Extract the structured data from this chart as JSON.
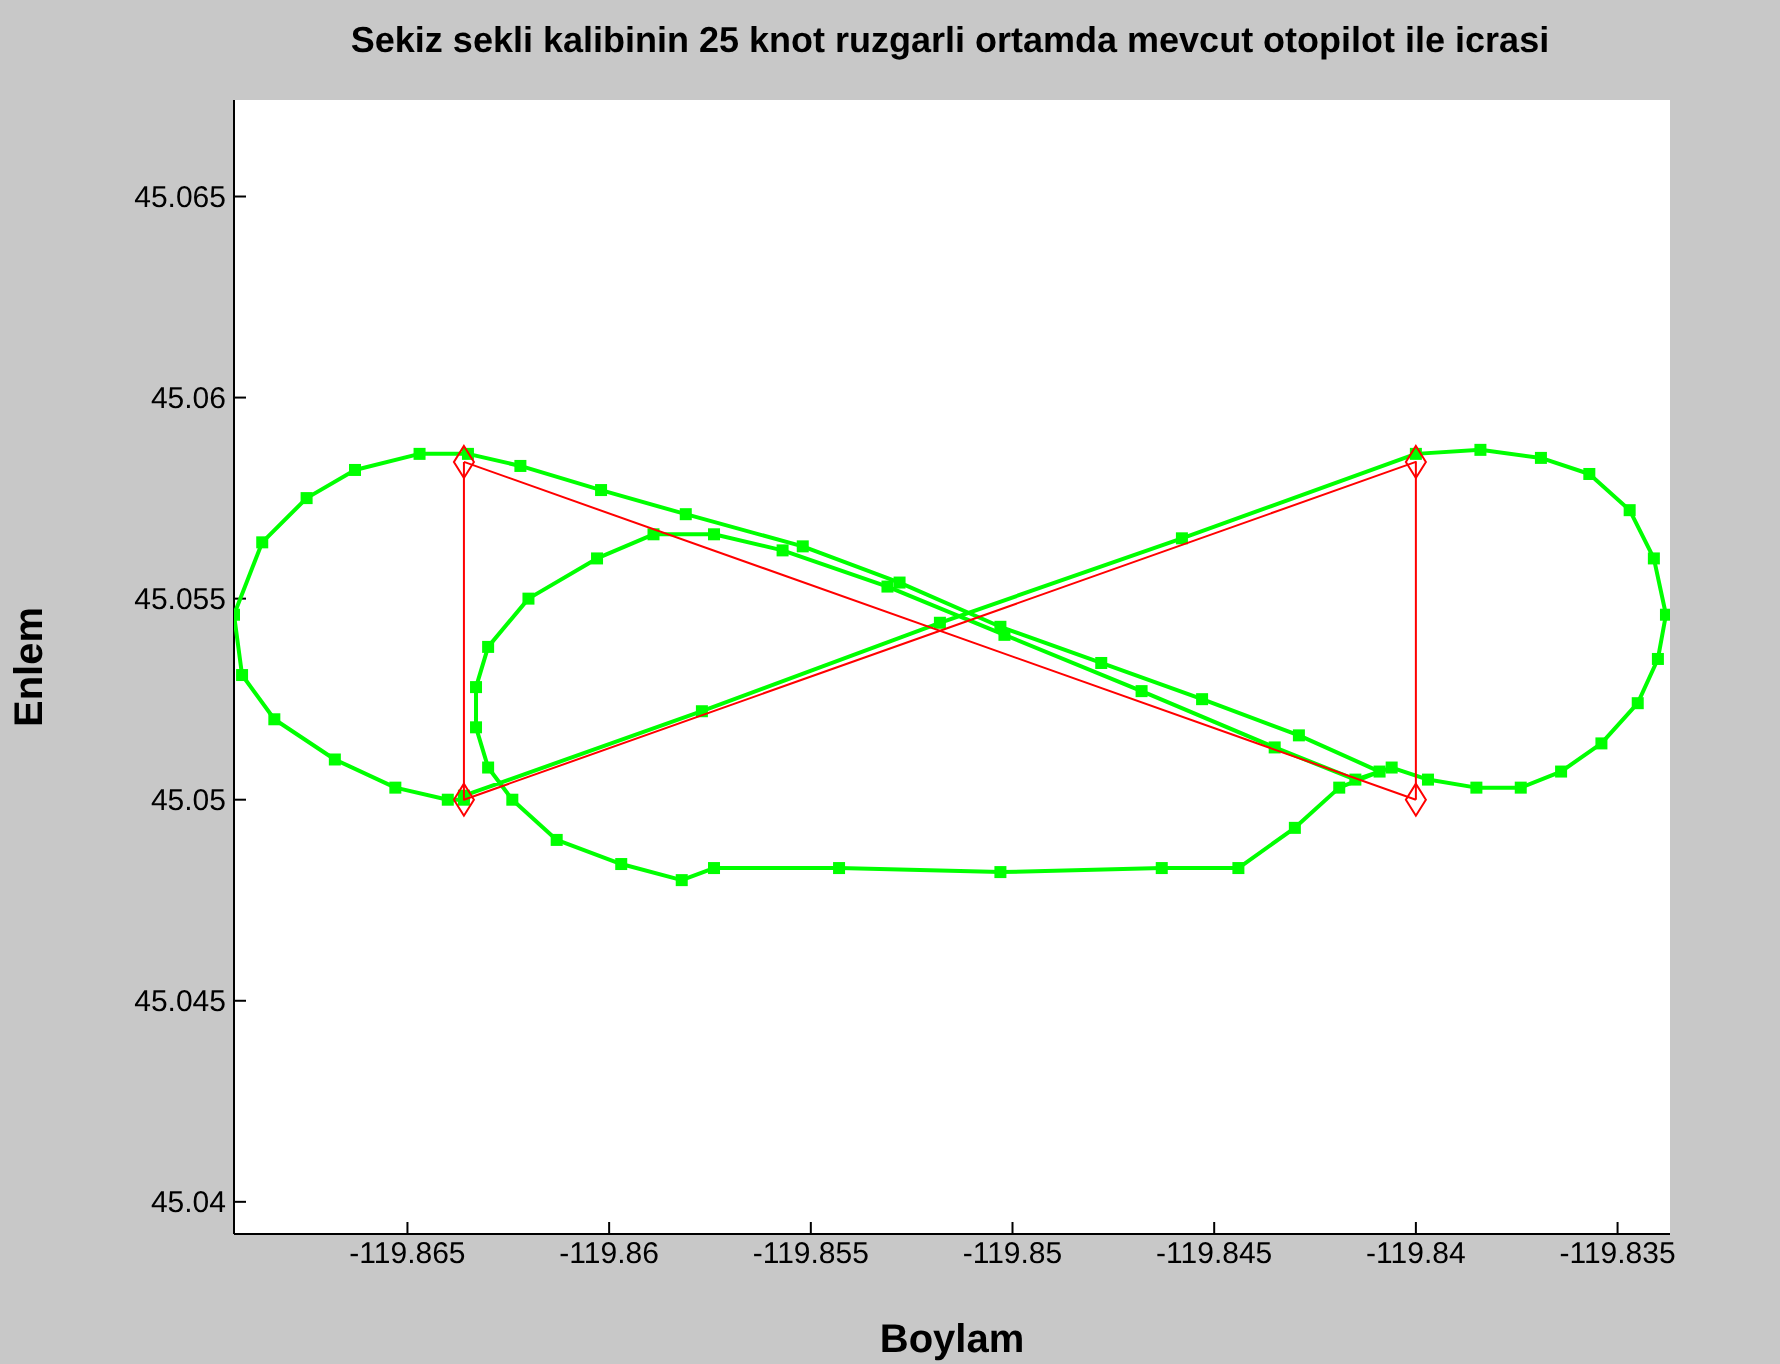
{
  "chart_data": {
    "type": "line",
    "title": "Sekiz sekli kalibinin 25 knot ruzgarli ortamda mevcut otopilot ile icrasi",
    "xlabel": "Boylam",
    "ylabel": "Enlem",
    "xlim": [
      -119.8693,
      -119.8337
    ],
    "xticks": [
      -119.865,
      -119.86,
      -119.855,
      -119.85,
      -119.845,
      -119.84,
      -119.835
    ],
    "ylim": [
      45.0392,
      45.0674
    ],
    "yticks": [
      45.04,
      45.045,
      45.05,
      45.055,
      45.06,
      45.065
    ],
    "grid": false,
    "line_style": "solid",
    "series": [
      {
        "color": "#00ff00",
        "marker": "square",
        "x": [
          -119.8636,
          -119.8577,
          -119.8518,
          -119.8458,
          -119.84,
          -119.8384,
          -119.8369,
          -119.8357,
          -119.8347,
          -119.8341,
          -119.8338,
          -119.834,
          -119.8345,
          -119.8354,
          -119.8364,
          -119.8374,
          -119.8385,
          -119.8397,
          -119.8406,
          -119.8415,
          -119.8435,
          -119.8468,
          -119.8502,
          -119.8531,
          -119.8557,
          -119.8574,
          -119.8589,
          -119.8603,
          -119.862,
          -119.863,
          -119.8633,
          -119.8633,
          -119.863,
          -119.8624,
          -119.8613,
          -119.8597,
          -119.8582,
          -119.8574,
          -119.8543,
          -119.8503,
          -119.8463,
          -119.8444,
          -119.843,
          -119.8419,
          -119.8409,
          -119.8429,
          -119.8453,
          -119.8478,
          -119.8503,
          -119.8528,
          -119.8552,
          -119.8581,
          -119.8602,
          -119.8622,
          -119.8635,
          -119.8647,
          -119.8663,
          -119.8675,
          -119.8686,
          -119.8693,
          -119.8691,
          -119.8683,
          -119.8668,
          -119.8653,
          -119.864,
          -119.8636
        ],
        "values": [
          45.0501,
          45.0522,
          45.0544,
          45.0565,
          45.0586,
          45.0587,
          45.0585,
          45.0581,
          45.0572,
          45.056,
          45.0546,
          45.0535,
          45.0524,
          45.0514,
          45.0507,
          45.0503,
          45.0503,
          45.0505,
          45.0508,
          45.0505,
          45.0513,
          45.0527,
          45.0541,
          45.0553,
          45.0562,
          45.0566,
          45.0566,
          45.056,
          45.055,
          45.0538,
          45.0528,
          45.0518,
          45.0508,
          45.05,
          45.049,
          45.0484,
          45.048,
          45.0483,
          45.0483,
          45.0482,
          45.0483,
          45.0483,
          45.0493,
          45.0503,
          45.0507,
          45.0516,
          45.0525,
          45.0534,
          45.0543,
          45.0554,
          45.0563,
          45.0571,
          45.0577,
          45.0583,
          45.0586,
          45.0586,
          45.0582,
          45.0575,
          45.0564,
          45.0546,
          45.0531,
          45.052,
          45.051,
          45.0503,
          45.05,
          45.05
        ]
      },
      {
        "color": "#ff0000",
        "marker": "diamond",
        "x": [
          -119.8636,
          -119.8636,
          -119.84,
          -119.84
        ],
        "values": [
          45.0584,
          45.05,
          45.0584,
          45.05
        ]
      },
      {
        "color": "#ff0000",
        "marker": "none",
        "x": [
          -119.84,
          -119.8636
        ],
        "values": [
          45.05,
          45.0584
        ]
      }
    ]
  }
}
